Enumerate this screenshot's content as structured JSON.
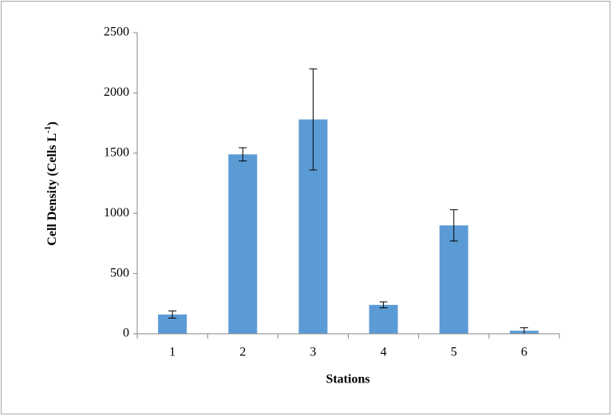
{
  "chart_data": {
    "type": "bar",
    "y_label": [
      "Cell Density (Cells L",
      "-1",
      ")"
    ],
    "x_label": "Stations",
    "categories": [
      "1",
      "2",
      "3",
      "4",
      "5",
      "6"
    ],
    "values": [
      160,
      1490,
      1780,
      240,
      900,
      25
    ],
    "errors": [
      30,
      55,
      420,
      25,
      130,
      25
    ],
    "color": "#5b9bd5",
    "ylim": [
      0,
      2500
    ],
    "yticks": [
      0,
      500,
      1000,
      1500,
      2000,
      2500
    ]
  }
}
